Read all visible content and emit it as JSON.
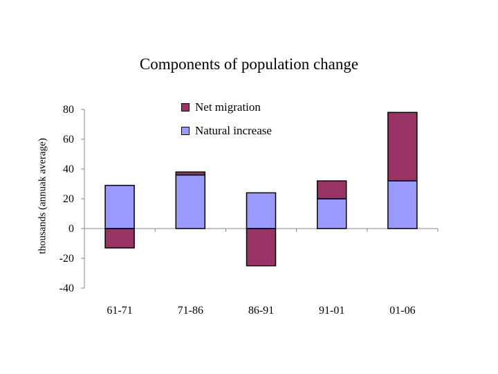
{
  "chart_data": {
    "type": "bar",
    "stacked": true,
    "title": "Components of population change",
    "xlabel": "",
    "ylabel": "thousands (annuak average)",
    "categories": [
      "61-71",
      "71-86",
      "86-91",
      "91-01",
      "01-06"
    ],
    "series": [
      {
        "name": "Natural increase",
        "color": "#9999ff",
        "values": [
          29,
          36,
          24,
          20,
          32
        ]
      },
      {
        "name": "Net migration",
        "color": "#993366",
        "values": [
          -13,
          2,
          -25,
          12,
          46
        ]
      }
    ],
    "yticks": [
      80,
      60,
      40,
      20,
      0,
      -20,
      -40
    ],
    "ytick_labels": [
      "80",
      "60",
      "40",
      "20",
      "0",
      "-20",
      "-40"
    ],
    "ylim": [
      -40,
      80
    ],
    "grid": false,
    "legend": [
      {
        "name": "Net migration",
        "color": "#993366"
      },
      {
        "name": "Natural increase",
        "color": "#9999ff"
      }
    ]
  }
}
